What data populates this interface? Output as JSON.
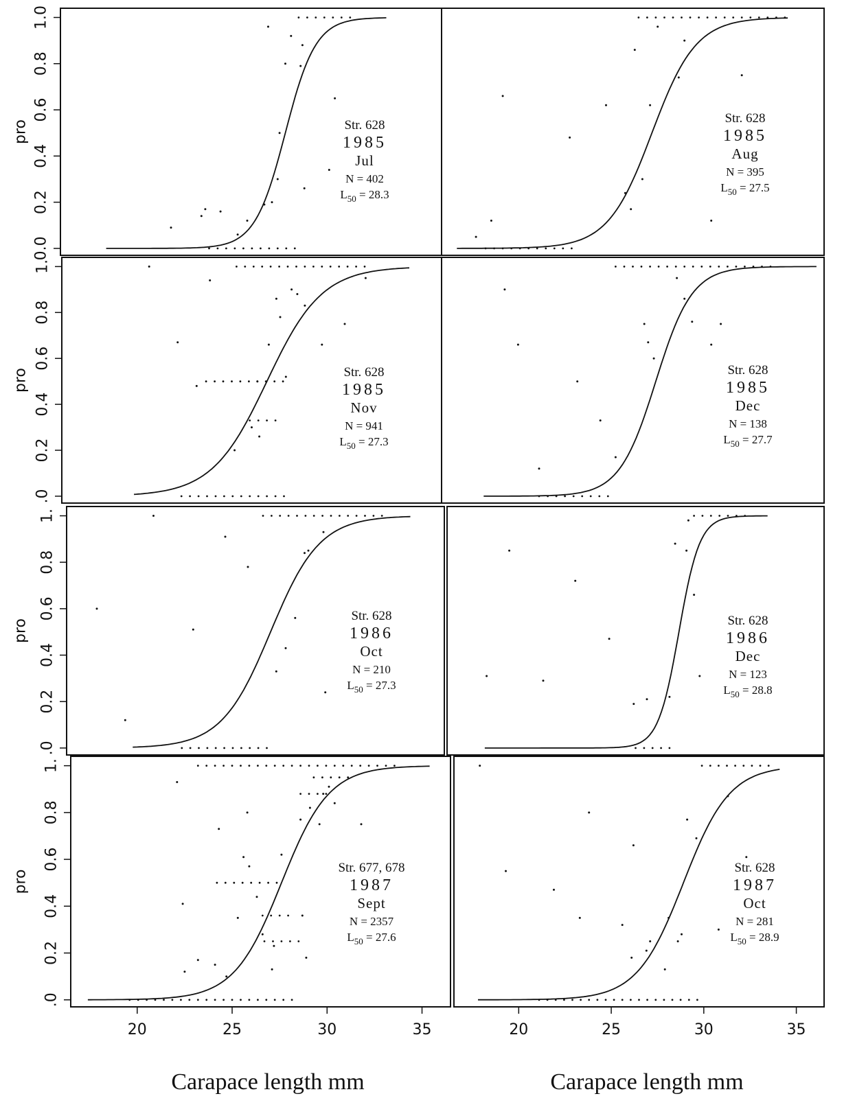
{
  "chart_data": {
    "type": "scatter",
    "common": {
      "ylabel": "pro",
      "xlabel": "Carapace length mm",
      "y_ticks": [
        {
          "v": 0,
          "label": "0.0"
        },
        {
          "v": 0.2,
          "label": "0.2"
        },
        {
          "v": 0.4,
          "label": "0.4"
        },
        {
          "v": 0.6,
          "label": "0.6"
        },
        {
          "v": 0.8,
          "label": "0.8"
        },
        {
          "v": 1,
          "label": "1.0"
        }
      ],
      "y_ticks_compact": [
        {
          "v": 0,
          "label": ".0"
        },
        {
          "v": 0.2,
          "label": "0.2"
        },
        {
          "v": 0.4,
          "label": "0.4"
        },
        {
          "v": 0.6,
          "label": "0.6"
        },
        {
          "v": 0.8,
          "label": "0.8"
        },
        {
          "v": 1,
          "label": "1."
        }
      ],
      "x_ticks": [
        {
          "v": 20,
          "label": "20"
        },
        {
          "v": 25,
          "label": "25"
        },
        {
          "v": 30,
          "label": "30"
        },
        {
          "v": 35,
          "label": "35"
        }
      ],
      "xlim": [
        16.5,
        36.5
      ],
      "ylim": [
        -0.03,
        1.04
      ]
    },
    "panels": [
      {
        "station": "Str. 628",
        "year": "1985",
        "month": "Jul",
        "n": "N = 402",
        "l50_value": "= 28.3",
        "curve": {
          "L50": 28.3,
          "scale": 0.8,
          "x0": 18.9,
          "x1": 33.6
        },
        "points": [
          [
            22.3,
            0.09
          ],
          [
            23.9,
            0.14
          ],
          [
            24.1,
            0.17
          ],
          [
            24.9,
            0.16
          ],
          [
            25.8,
            0.06
          ],
          [
            26.3,
            0.12
          ],
          [
            27.2,
            0.19
          ],
          [
            27.6,
            0.2
          ],
          [
            27.9,
            0.3
          ],
          [
            28,
            0.5
          ],
          [
            28.3,
            0.8
          ],
          [
            28.6,
            0.92
          ],
          [
            29.1,
            0.79
          ],
          [
            29.2,
            0.88
          ],
          [
            30.9,
            0.65
          ],
          [
            27.4,
            0.96
          ],
          [
            30.6,
            0.34
          ],
          [
            29.3,
            0.26
          ]
        ],
        "zero_row": [
          24.3,
          28.9
        ],
        "one_row": [
          29,
          31.9
        ]
      },
      {
        "station": "Str. 628",
        "year": "1985",
        "month": "Aug",
        "n": "N = 395",
        "l50_value": "= 27.5",
        "curve": {
          "L50": 27.5,
          "scale": 1.15,
          "x0": 17.3,
          "x1": 34.6
        },
        "points": [
          [
            18.3,
            0.05
          ],
          [
            19.7,
            0.66
          ],
          [
            23.2,
            0.48
          ],
          [
            25.1,
            0.62
          ],
          [
            26.1,
            0.24
          ],
          [
            26.4,
            0.17
          ],
          [
            26.6,
            0.86
          ],
          [
            27,
            0.3
          ],
          [
            27.4,
            0.62
          ],
          [
            28.9,
            0.74
          ],
          [
            29.2,
            0.9
          ],
          [
            30.6,
            0.12
          ],
          [
            32.2,
            0.75
          ],
          [
            27.8,
            0.96
          ],
          [
            19.1,
            0.12
          ]
        ],
        "zero_row": [
          18.8,
          23.4
        ],
        "one_row": [
          26.8,
          34.6
        ]
      },
      {
        "station": "Str. 628",
        "year": "1985",
        "month": "Nov",
        "n": "N = 941",
        "l50_value": "= 27.3",
        "curve": {
          "L50": 27.3,
          "scale": 1.45,
          "x0": 20.3,
          "x1": 34.8
        },
        "points": [
          [
            21.1,
            1
          ],
          [
            22.6,
            0.67
          ],
          [
            23.6,
            0.48
          ],
          [
            24.3,
            0.94
          ],
          [
            25.6,
            0.2
          ],
          [
            26.5,
            0.3
          ],
          [
            26.9,
            0.26
          ],
          [
            27.4,
            0.66
          ],
          [
            27.8,
            0.86
          ],
          [
            28,
            0.78
          ],
          [
            28.3,
            0.52
          ],
          [
            28.6,
            0.9
          ],
          [
            28.9,
            0.88
          ],
          [
            29.3,
            0.83
          ],
          [
            30.2,
            0.66
          ],
          [
            31.4,
            0.75
          ],
          [
            32.5,
            0.95
          ],
          [
            26.8,
            0.5
          ]
        ],
        "zero_row": [
          22.8,
          28.5
        ],
        "one_row": [
          25.7,
          32.8
        ],
        "extra_rows": [
          [
            0.5,
            24.1,
            28.5
          ],
          [
            0.33,
            26.4,
            28.1
          ]
        ]
      },
      {
        "station": "Str. 628",
        "year": "1985",
        "month": "Dec",
        "n": "N = 138",
        "l50_value": "= 27.7",
        "curve": {
          "L50": 27.7,
          "scale": 0.95,
          "x0": 18.7,
          "x1": 36.1
        },
        "points": [
          [
            20.5,
            0.66
          ],
          [
            21.6,
            0.12
          ],
          [
            23.6,
            0.5
          ],
          [
            24.8,
            0.33
          ],
          [
            25.6,
            0.17
          ],
          [
            27.1,
            0.75
          ],
          [
            27.3,
            0.67
          ],
          [
            27.6,
            0.6
          ],
          [
            28.8,
            0.95
          ],
          [
            29.2,
            0.86
          ],
          [
            29.6,
            0.76
          ],
          [
            30.6,
            0.66
          ],
          [
            31.1,
            0.75
          ],
          [
            19.8,
            0.9
          ]
        ],
        "zero_row": [
          21.6,
          25.3
        ],
        "one_row": [
          25.6,
          33.9
        ]
      },
      {
        "station": "Str. 628",
        "year": "1986",
        "month": "Oct",
        "n": "N = 210",
        "l50_value": "= 27.3",
        "curve": {
          "L50": 27.3,
          "scale": 1.3,
          "x0": 20,
          "x1": 34.7
        },
        "points": [
          [
            21.1,
            1
          ],
          [
            23.2,
            0.51
          ],
          [
            24.9,
            0.91
          ],
          [
            26.1,
            0.78
          ],
          [
            27.6,
            0.33
          ],
          [
            28.1,
            0.43
          ],
          [
            28.6,
            0.56
          ],
          [
            29.1,
            0.84
          ],
          [
            29.3,
            0.85
          ],
          [
            30.1,
            0.93
          ],
          [
            30.2,
            0.24
          ],
          [
            18.1,
            0.6
          ],
          [
            19.6,
            0.12
          ]
        ],
        "zero_row": [
          22.6,
          27.2
        ],
        "one_row": [
          26.9,
          33.2
        ]
      },
      {
        "station": "Str. 628",
        "year": "1986",
        "month": "Dec",
        "n": "N = 123",
        "l50_value": "= 28.8",
        "curve": {
          "L50": 28.8,
          "scale": 0.55,
          "x0": 18.5,
          "x1": 33.5
        },
        "points": [
          [
            18.6,
            0.31
          ],
          [
            19.8,
            0.85
          ],
          [
            21.6,
            0.29
          ],
          [
            23.3,
            0.72
          ],
          [
            25.1,
            0.47
          ],
          [
            26.4,
            0.19
          ],
          [
            27.1,
            0.21
          ],
          [
            28.3,
            0.22
          ],
          [
            28.6,
            0.88
          ],
          [
            29.2,
            0.85
          ],
          [
            29.6,
            0.66
          ],
          [
            29.9,
            0.31
          ],
          [
            29.3,
            0.98
          ]
        ],
        "zero_row": [
          26.5,
          28.3
        ],
        "one_row": [
          29.6,
          32.4
        ]
      },
      {
        "station": "Str. 677, 678",
        "year": "1987",
        "month": "Sept",
        "n": "N = 2357",
        "l50_value": "= 27.6",
        "curve": {
          "L50": 27.6,
          "scale": 1.25,
          "x0": 17.4,
          "x1": 35.4
        },
        "points": [
          [
            22.4,
            0.41
          ],
          [
            22.5,
            0.12
          ],
          [
            23.2,
            0.17
          ],
          [
            24.1,
            0.15
          ],
          [
            24.3,
            0.73
          ],
          [
            24.7,
            0.1
          ],
          [
            25.3,
            0.35
          ],
          [
            25.6,
            0.61
          ],
          [
            25.9,
            0.57
          ],
          [
            26.3,
            0.44
          ],
          [
            26.6,
            0.28
          ],
          [
            27.1,
            0.13
          ],
          [
            27.2,
            0.23
          ],
          [
            27.6,
            0.62
          ],
          [
            28.6,
            0.77
          ],
          [
            28.7,
            0.36
          ],
          [
            29.1,
            0.82
          ],
          [
            29.6,
            0.75
          ],
          [
            29.8,
            0.88
          ],
          [
            30.1,
            0.91
          ],
          [
            30.4,
            0.84
          ],
          [
            31.8,
            0.75
          ],
          [
            28.9,
            0.18
          ],
          [
            25.8,
            0.8
          ],
          [
            22.1,
            0.93
          ]
        ],
        "zero_row": [
          19.6,
          28.4
        ],
        "one_row": [
          23.2,
          33.7
        ],
        "extra_rows": [
          [
            0.5,
            24.2,
            27.6
          ],
          [
            0.36,
            26.6,
            28.2
          ],
          [
            0.25,
            26.7,
            28.6
          ],
          [
            0.88,
            28.6,
            30.1
          ],
          [
            0.95,
            29.3,
            31.2
          ]
        ]
      },
      {
        "station": "Str. 628",
        "year": "1987",
        "month": "Oct",
        "n": "N = 281",
        "l50_value": "= 28.9",
        "curve": {
          "L50": 28.9,
          "scale": 1.25,
          "x0": 17.8,
          "x1": 34.1
        },
        "points": [
          [
            17.9,
            1
          ],
          [
            19.3,
            0.55
          ],
          [
            21.9,
            0.47
          ],
          [
            23.3,
            0.35
          ],
          [
            25.6,
            0.32
          ],
          [
            26.1,
            0.18
          ],
          [
            26.9,
            0.21
          ],
          [
            27.1,
            0.25
          ],
          [
            27.9,
            0.13
          ],
          [
            28.1,
            0.35
          ],
          [
            28.6,
            0.25
          ],
          [
            28.8,
            0.28
          ],
          [
            29.1,
            0.77
          ],
          [
            29.6,
            0.69
          ],
          [
            30.8,
            0.3
          ],
          [
            31.3,
            0.87
          ],
          [
            32.3,
            0.61
          ],
          [
            23.8,
            0.8
          ],
          [
            26.2,
            0.66
          ]
        ],
        "zero_row": [
          21.1,
          29.9
        ],
        "one_row": [
          29.9,
          33.8
        ]
      }
    ]
  }
}
